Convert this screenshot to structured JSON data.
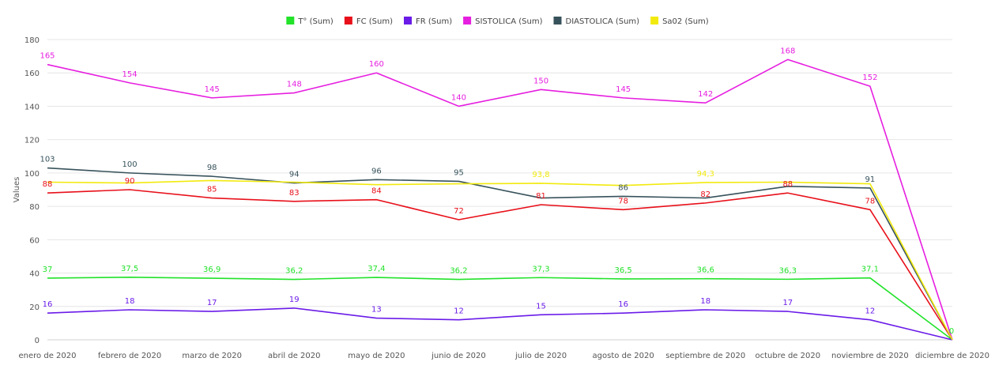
{
  "chart_data": {
    "type": "line",
    "ylabel": "Values",
    "ylim": [
      0,
      180
    ],
    "yticks": [
      0,
      20,
      40,
      60,
      80,
      100,
      120,
      140,
      160,
      180
    ],
    "grid": true,
    "legend_position": "top-center",
    "categories": [
      "enero de 2020",
      "febrero de 2020",
      "marzo de 2020",
      "abril de 2020",
      "mayo de 2020",
      "junio de 2020",
      "julio de 2020",
      "agosto de 2020",
      "septiembre de 2020",
      "octubre de 2020",
      "noviembre de 2020",
      "diciembre de 2020"
    ],
    "series": [
      {
        "name": "T° (Sum)",
        "color": "#22e22a",
        "values": [
          37,
          37.5,
          36.9,
          36.2,
          37.4,
          36.2,
          37.3,
          36.5,
          36.6,
          36.3,
          37.1,
          0
        ],
        "labels": [
          "37",
          "37,5",
          "36,9",
          "36,2",
          "37,4",
          "36,2",
          "37,3",
          "36,5",
          "36,6",
          "36,3",
          "37,1",
          "0"
        ]
      },
      {
        "name": "FC (Sum)",
        "color": "#e8101a",
        "values": [
          88,
          90,
          85,
          83,
          84,
          72,
          81,
          78,
          82,
          88,
          78,
          0
        ],
        "labels": [
          "88",
          "90",
          "85",
          "83",
          "84",
          "72",
          "81",
          "78",
          "82",
          "88",
          "78",
          ""
        ]
      },
      {
        "name": "FR (Sum)",
        "color": "#6a1be8",
        "values": [
          16,
          18,
          17,
          19,
          13,
          12,
          15,
          16,
          18,
          17,
          12,
          0
        ],
        "labels": [
          "16",
          "18",
          "17",
          "19",
          "13",
          "12",
          "15",
          "16",
          "18",
          "17",
          "12",
          ""
        ]
      },
      {
        "name": "SISTOLICA (Sum)",
        "color": "#e61ee0",
        "values": [
          165,
          154,
          145,
          148,
          160,
          140,
          150,
          145,
          142,
          168,
          152,
          0
        ],
        "labels": [
          "165",
          "154",
          "145",
          "148",
          "160",
          "140",
          "150",
          "145",
          "142",
          "168",
          "152",
          ""
        ]
      },
      {
        "name": "DIASTOLICA (Sum)",
        "color": "#37525b",
        "values": [
          103,
          100,
          98,
          94,
          96,
          95,
          85,
          86,
          85,
          92,
          91,
          0
        ],
        "labels": [
          "103",
          "100",
          "98",
          "94",
          "96",
          "95",
          "",
          "86",
          "",
          "",
          "91",
          ""
        ]
      },
      {
        "name": "Sa02 (Sum)",
        "color": "#f2ea0e",
        "values": [
          94.5,
          94,
          95.5,
          94.5,
          93,
          93.5,
          93.8,
          92.5,
          94.3,
          94.5,
          93.5,
          0
        ],
        "labels": [
          "",
          "",
          "",
          "",
          "",
          "",
          "93,8",
          "",
          "94,3",
          "",
          "",
          ""
        ]
      }
    ]
  }
}
